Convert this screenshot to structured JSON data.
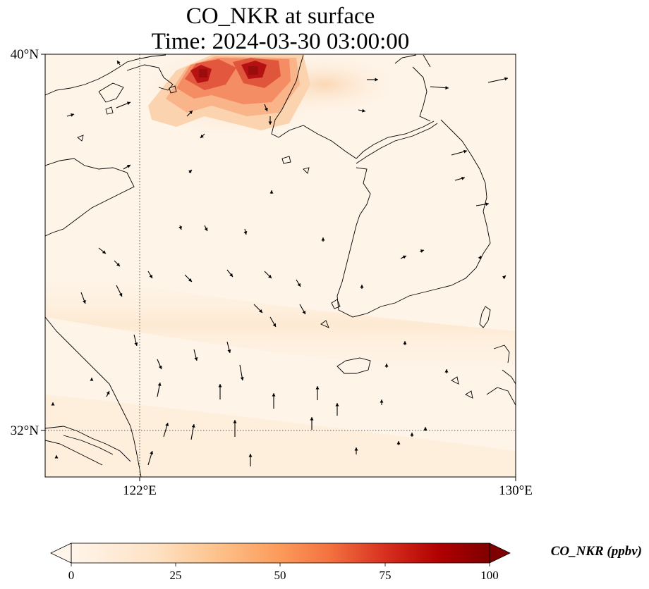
{
  "title": {
    "line1": "CO_NKR at surface",
    "line2": "Time: 2024-03-30 03:00:00"
  },
  "axes": {
    "lon_ticks": [
      "122°E",
      "130°E"
    ],
    "lat_ticks": [
      "40°N",
      "32°N"
    ],
    "lon_range": [
      120,
      130
    ],
    "lat_range": [
      31,
      40
    ],
    "gridlines": "dotted at 122°E and 32°N"
  },
  "colorbar": {
    "label": "CO_NKR (ppbv)",
    "ticks": [
      "0",
      "25",
      "50",
      "75",
      "100"
    ],
    "range": [
      0,
      100
    ],
    "extend": "both",
    "colormap": [
      "#fff5eb",
      "#fdd0a2",
      "#fd8d3c",
      "#d94801",
      "#a50000",
      "#7f0000"
    ]
  },
  "colors": {
    "background_field": "#fef4e8",
    "plume_low": "#fbd0a8",
    "plume_mid": "#f07a54",
    "plume_high": "#b81010",
    "coastline": "#000000"
  }
}
